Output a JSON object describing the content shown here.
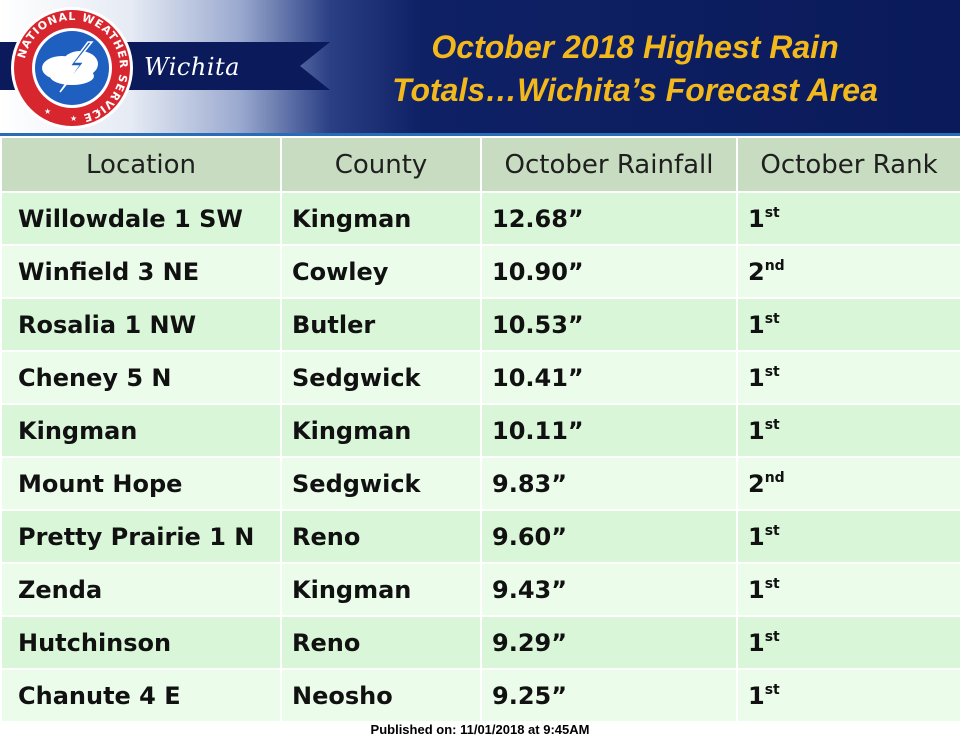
{
  "header": {
    "office": "Wichita",
    "logo_ring_text": "NATIONAL WEATHER SERVICE",
    "title_line1": "October 2018 Highest Rain",
    "title_line2": "Totals…Wichita’s Forecast Area"
  },
  "colors": {
    "header_navy": "#0a1a5a",
    "title_gold": "#f3b81b",
    "table_header_bg": "#c7dcc0",
    "row_bg_dark": "#d9f7d8",
    "row_bg_light": "#ebfceb"
  },
  "table": {
    "columns": [
      "Location",
      "County",
      "October Rainfall",
      "October Rank"
    ],
    "rows": [
      {
        "location": "Willowdale 1 SW",
        "county": "Kingman",
        "rainfall": "12.68”",
        "rank_num": "1",
        "rank_suffix": "st"
      },
      {
        "location": "Winfield 3 NE",
        "county": "Cowley",
        "rainfall": "10.90”",
        "rank_num": "2",
        "rank_suffix": "nd"
      },
      {
        "location": "Rosalia 1 NW",
        "county": "Butler",
        "rainfall": "10.53”",
        "rank_num": "1",
        "rank_suffix": "st"
      },
      {
        "location": "Cheney 5 N",
        "county": "Sedgwick",
        "rainfall": "10.41”",
        "rank_num": "1",
        "rank_suffix": "st"
      },
      {
        "location": "Kingman",
        "county": "Kingman",
        "rainfall": "10.11”",
        "rank_num": "1",
        "rank_suffix": "st"
      },
      {
        "location": "Mount Hope",
        "county": "Sedgwick",
        "rainfall": "9.83”",
        "rank_num": "2",
        "rank_suffix": "nd"
      },
      {
        "location": "Pretty Prairie 1 N",
        "county": "Reno",
        "rainfall": "9.60”",
        "rank_num": "1",
        "rank_suffix": "st"
      },
      {
        "location": "Zenda",
        "county": "Kingman",
        "rainfall": "9.43”",
        "rank_num": "1",
        "rank_suffix": "st"
      },
      {
        "location": "Hutchinson",
        "county": "Reno",
        "rainfall": "9.29”",
        "rank_num": "1",
        "rank_suffix": "st"
      },
      {
        "location": "Chanute 4 E",
        "county": "Neosho",
        "rainfall": "9.25”",
        "rank_num": "1",
        "rank_suffix": "st"
      }
    ]
  },
  "footer": {
    "published": "Published on: 11/01/2018 at 9:45AM"
  }
}
